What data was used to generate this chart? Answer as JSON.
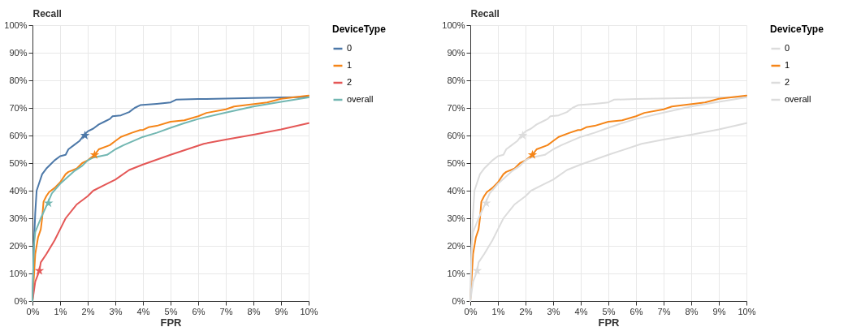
{
  "chart_data": [
    {
      "type": "line",
      "xlabel": "FPR",
      "ylabel": "Recall",
      "legend_title": "DeviceType",
      "grid": true,
      "legend": "top right",
      "xlim": [
        0,
        10
      ],
      "ylim": [
        0,
        100
      ],
      "xticks": [
        {
          "value": 0,
          "label": "0%"
        },
        {
          "value": 1,
          "label": "1%"
        },
        {
          "value": 2,
          "label": "2%"
        },
        {
          "value": 3,
          "label": "3%"
        },
        {
          "value": 4,
          "label": "4%"
        },
        {
          "value": 5,
          "label": "5%"
        },
        {
          "value": 6,
          "label": "6%"
        },
        {
          "value": 7,
          "label": "7%"
        },
        {
          "value": 8,
          "label": "8%"
        },
        {
          "value": 9,
          "label": "9%"
        },
        {
          "value": 10,
          "label": "10%"
        }
      ],
      "yticks": [
        {
          "value": 0,
          "label": "0%"
        },
        {
          "value": 10,
          "label": "10%"
        },
        {
          "value": 20,
          "label": "20%"
        },
        {
          "value": 30,
          "label": "30%"
        },
        {
          "value": 40,
          "label": "40%"
        },
        {
          "value": 50,
          "label": "50%"
        },
        {
          "value": 60,
          "label": "60%"
        },
        {
          "value": 70,
          "label": "70%"
        },
        {
          "value": 80,
          "label": "80%"
        },
        {
          "value": 90,
          "label": "90%"
        },
        {
          "value": 100,
          "label": "100%"
        }
      ],
      "series": [
        {
          "name": "0",
          "color": "#4c78a8",
          "x": [
            0,
            0.05,
            0.1,
            0.15,
            0.25,
            0.35,
            0.5,
            0.7,
            0.8,
            1.0,
            1.2,
            1.3,
            1.5,
            1.7,
            1.85,
            2.0,
            2.2,
            2.4,
            2.6,
            2.8,
            2.9,
            3.2,
            3.5,
            3.7,
            3.9,
            4.5,
            5.0,
            5.2,
            6,
            8,
            10
          ],
          "values": [
            0,
            20,
            32,
            40,
            43,
            46,
            48,
            50,
            51,
            52.5,
            53,
            55,
            56.5,
            58,
            60,
            61.5,
            62.5,
            64,
            65,
            66,
            67,
            67.3,
            68.5,
            70,
            71,
            71.5,
            72,
            73,
            73.2,
            73.6,
            74
          ]
        },
        {
          "name": "1",
          "color": "#f58518",
          "x": [
            0,
            0.1,
            0.2,
            0.3,
            0.35,
            0.4,
            0.5,
            0.6,
            0.8,
            1.0,
            1.2,
            1.3,
            1.6,
            1.8,
            2.0,
            2.25,
            2.4,
            2.8,
            3.0,
            3.2,
            3.6,
            3.9,
            4.0,
            4.2,
            4.5,
            5.0,
            5.5,
            6.0,
            6.3,
            7.0,
            7.3,
            8.5,
            9.0,
            10
          ],
          "values": [
            0,
            17,
            23,
            26,
            30,
            36,
            38,
            39.5,
            41,
            43,
            46,
            46.8,
            48,
            50,
            51,
            53,
            55,
            56.5,
            58,
            59.5,
            61,
            62,
            62,
            63,
            63.5,
            65,
            65.5,
            67,
            68.2,
            69.5,
            70.5,
            72,
            73.3,
            74.5
          ]
        },
        {
          "name": "2",
          "color": "#e45756",
          "x": [
            0,
            0.1,
            0.25,
            0.3,
            0.5,
            0.8,
            1.0,
            1.2,
            1.6,
            2.0,
            2.2,
            2.6,
            3.0,
            3.5,
            4.0,
            5.0,
            6.2,
            7.0,
            8.0,
            9.0,
            10
          ],
          "values": [
            0,
            7,
            11,
            14,
            17,
            22,
            26,
            30,
            35,
            38,
            40,
            42,
            44,
            47.5,
            49.5,
            53,
            57,
            58.5,
            60.3,
            62.2,
            64.5
          ]
        },
        {
          "name": "overall",
          "color": "#72b7b2",
          "x": [
            0,
            0.05,
            0.1,
            0.3,
            0.55,
            0.7,
            1.0,
            1.5,
            1.8,
            2.0,
            2.2,
            2.7,
            3.0,
            3.3,
            4.0,
            4.5,
            5.0,
            5.5,
            6,
            7,
            8,
            9,
            10
          ],
          "values": [
            0,
            20,
            25,
            30,
            35.5,
            39,
            42.5,
            47,
            49,
            51,
            52,
            53,
            55,
            56.5,
            59.5,
            61,
            62.8,
            64.5,
            66,
            68.3,
            70.5,
            72.2,
            73.8
          ]
        },
        {
          "type": "scatter",
          "marker": "star",
          "color": "#4c78a8",
          "x": [
            1.9
          ],
          "values": [
            60
          ]
        },
        {
          "type": "scatter",
          "marker": "star",
          "color": "#f58518",
          "x": [
            2.25
          ],
          "values": [
            53
          ]
        },
        {
          "type": "scatter",
          "marker": "star",
          "color": "#e45756",
          "x": [
            0.25
          ],
          "values": [
            11
          ]
        },
        {
          "type": "scatter",
          "marker": "star",
          "color": "#72b7b2",
          "x": [
            0.58
          ],
          "values": [
            35.5
          ]
        }
      ]
    },
    {
      "type": "line",
      "xlabel": "FPR",
      "ylabel": "Recall",
      "legend_title": "DeviceType",
      "grid": true,
      "legend": "top right",
      "xlim": [
        0,
        10
      ],
      "ylim": [
        0,
        100
      ],
      "xticks": [
        {
          "value": 0,
          "label": "0%"
        },
        {
          "value": 1,
          "label": "1%"
        },
        {
          "value": 2,
          "label": "2%"
        },
        {
          "value": 3,
          "label": "3%"
        },
        {
          "value": 4,
          "label": "4%"
        },
        {
          "value": 5,
          "label": "5%"
        },
        {
          "value": 6,
          "label": "6%"
        },
        {
          "value": 7,
          "label": "7%"
        },
        {
          "value": 8,
          "label": "8%"
        },
        {
          "value": 9,
          "label": "9%"
        },
        {
          "value": 10,
          "label": "10%"
        }
      ],
      "yticks": [
        {
          "value": 0,
          "label": "0%"
        },
        {
          "value": 10,
          "label": "10%"
        },
        {
          "value": 20,
          "label": "20%"
        },
        {
          "value": 30,
          "label": "30%"
        },
        {
          "value": 40,
          "label": "40%"
        },
        {
          "value": 50,
          "label": "50%"
        },
        {
          "value": 60,
          "label": "60%"
        },
        {
          "value": 70,
          "label": "70%"
        },
        {
          "value": 80,
          "label": "80%"
        },
        {
          "value": 90,
          "label": "90%"
        },
        {
          "value": 100,
          "label": "100%"
        }
      ],
      "series": [
        {
          "name": "0",
          "color": "#dcdcdc",
          "x": [
            0,
            0.05,
            0.1,
            0.15,
            0.25,
            0.35,
            0.5,
            0.7,
            0.8,
            1.0,
            1.2,
            1.3,
            1.5,
            1.7,
            1.85,
            2.0,
            2.2,
            2.4,
            2.6,
            2.8,
            2.9,
            3.2,
            3.5,
            3.7,
            3.9,
            4.5,
            5.0,
            5.2,
            6,
            8,
            10
          ],
          "values": [
            0,
            20,
            32,
            40,
            43,
            46,
            48,
            50,
            51,
            52.5,
            53,
            55,
            56.5,
            58,
            60,
            61.5,
            62.5,
            64,
            65,
            66,
            67,
            67.3,
            68.5,
            70,
            71,
            71.5,
            72,
            73,
            73.2,
            73.6,
            74
          ]
        },
        {
          "name": "1",
          "color": "#f58518",
          "x": [
            0,
            0.1,
            0.2,
            0.3,
            0.35,
            0.4,
            0.5,
            0.6,
            0.8,
            1.0,
            1.2,
            1.3,
            1.6,
            1.8,
            2.0,
            2.25,
            2.4,
            2.8,
            3.0,
            3.2,
            3.6,
            3.9,
            4.0,
            4.2,
            4.5,
            5.0,
            5.5,
            6.0,
            6.3,
            7.0,
            7.3,
            8.5,
            9.0,
            10
          ],
          "values": [
            0,
            17,
            23,
            26,
            30,
            36,
            38,
            39.5,
            41,
            43,
            46,
            46.8,
            48,
            50,
            51,
            53,
            55,
            56.5,
            58,
            59.5,
            61,
            62,
            62,
            63,
            63.5,
            65,
            65.5,
            67,
            68.2,
            69.5,
            70.5,
            72,
            73.3,
            74.5
          ]
        },
        {
          "name": "2",
          "color": "#dcdcdc",
          "x": [
            0,
            0.1,
            0.25,
            0.3,
            0.5,
            0.8,
            1.0,
            1.2,
            1.6,
            2.0,
            2.2,
            2.6,
            3.0,
            3.5,
            4.0,
            5.0,
            6.2,
            7.0,
            8.0,
            9.0,
            10
          ],
          "values": [
            0,
            7,
            11,
            14,
            17,
            22,
            26,
            30,
            35,
            38,
            40,
            42,
            44,
            47.5,
            49.5,
            53,
            57,
            58.5,
            60.3,
            62.2,
            64.5
          ]
        },
        {
          "name": "overall",
          "color": "#dcdcdc",
          "x": [
            0,
            0.05,
            0.1,
            0.3,
            0.55,
            0.7,
            1.0,
            1.5,
            1.8,
            2.0,
            2.2,
            2.7,
            3.0,
            3.3,
            4.0,
            4.5,
            5.0,
            5.5,
            6,
            7,
            8,
            9,
            10
          ],
          "values": [
            0,
            20,
            25,
            30,
            35.5,
            39,
            42.5,
            47,
            49,
            51,
            52,
            53,
            55,
            56.5,
            59.5,
            61,
            62.8,
            64.5,
            66,
            68.3,
            70.5,
            72.2,
            73.8
          ]
        },
        {
          "type": "scatter",
          "marker": "star",
          "color": "#dcdcdc",
          "x": [
            1.9
          ],
          "values": [
            60
          ]
        },
        {
          "type": "scatter",
          "marker": "star",
          "color": "#f58518",
          "x": [
            2.25
          ],
          "values": [
            53
          ]
        },
        {
          "type": "scatter",
          "marker": "star",
          "color": "#dcdcdc",
          "x": [
            0.25
          ],
          "values": [
            11
          ]
        },
        {
          "type": "scatter",
          "marker": "star",
          "color": "#dcdcdc",
          "x": [
            0.58
          ],
          "values": [
            35.5
          ]
        }
      ]
    }
  ]
}
